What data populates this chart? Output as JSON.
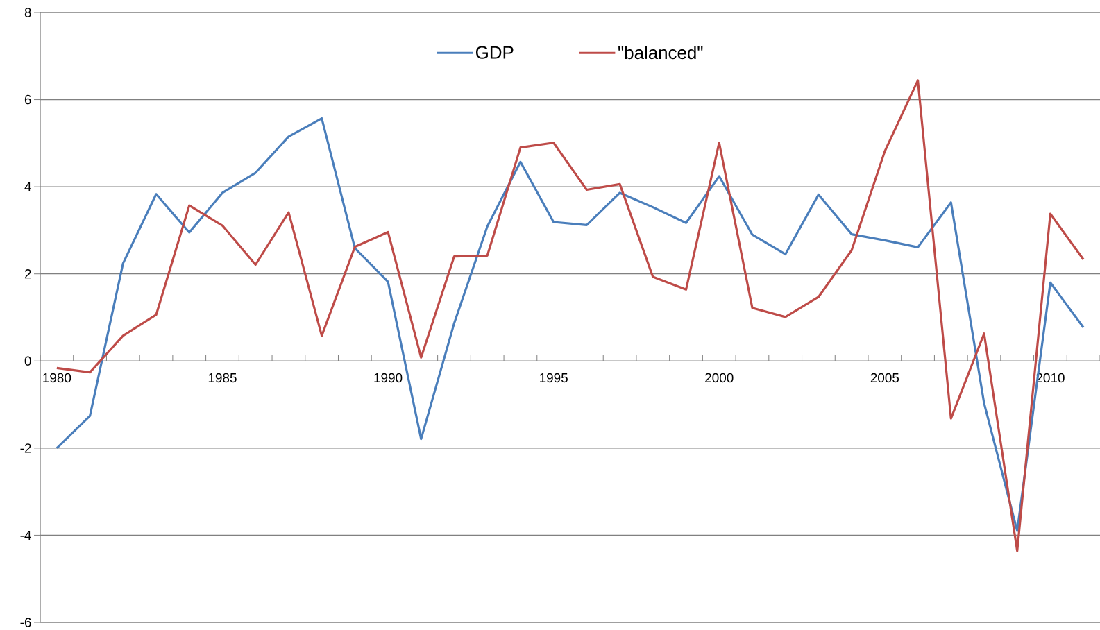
{
  "chart_data": {
    "type": "line",
    "categories": [
      "1980",
      null,
      null,
      null,
      null,
      "1985",
      null,
      null,
      null,
      null,
      "1990",
      null,
      null,
      null,
      null,
      "1995",
      null,
      null,
      null,
      null,
      "2000",
      null,
      null,
      null,
      null,
      "2005",
      null,
      null,
      null,
      null,
      "2010",
      null
    ],
    "series": [
      {
        "name": "GDP",
        "color": "#4a7ebb",
        "values": [
          -2.0,
          -1.26,
          2.24,
          3.83,
          2.95,
          3.86,
          4.32,
          5.15,
          5.57,
          2.59,
          1.82,
          -1.79,
          0.87,
          3.09,
          4.57,
          3.19,
          3.12,
          3.86,
          3.53,
          3.17,
          4.24,
          2.9,
          2.45,
          3.82,
          2.91,
          2.77,
          2.61,
          3.64,
          -0.97,
          -3.9,
          1.8,
          0.77
        ]
      },
      {
        "name": "\"balanced\"",
        "color": "#be4b48",
        "values": [
          -0.16,
          -0.26,
          0.58,
          1.06,
          3.57,
          3.11,
          2.21,
          3.41,
          0.58,
          2.62,
          2.96,
          0.08,
          2.4,
          2.42,
          4.9,
          5.01,
          3.93,
          4.06,
          1.93,
          1.64,
          5.01,
          1.22,
          1.01,
          1.47,
          2.54,
          4.81,
          6.44,
          -1.32,
          0.63,
          -4.36,
          3.38,
          2.33
        ]
      }
    ],
    "ylim": [
      -6,
      8
    ],
    "yticks": [
      -6,
      -4,
      -2,
      0,
      2,
      4,
      6,
      8
    ],
    "grid": "y",
    "legend": "top",
    "marker": "none",
    "line_style": "solid"
  }
}
